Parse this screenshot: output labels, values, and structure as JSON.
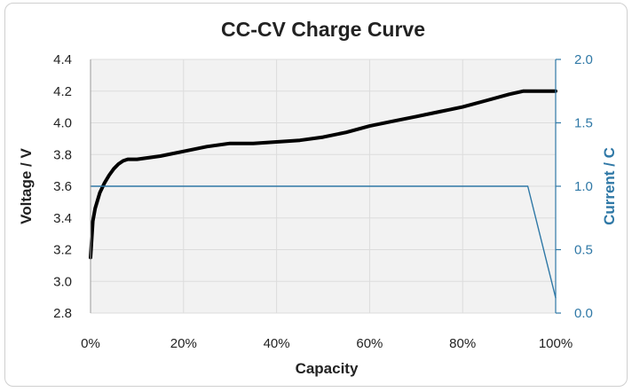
{
  "chart_data": {
    "type": "line",
    "title": "CC-CV Charge Curve",
    "xlabel": "Capacity",
    "ylabel": "Voltage / V",
    "y2label": "Current / C",
    "xlim": [
      0,
      100
    ],
    "ylim": [
      2.8,
      4.4
    ],
    "y2lim": [
      0.0,
      2.0
    ],
    "x_ticks": [
      0,
      20,
      40,
      60,
      80,
      100
    ],
    "x_tick_labels": [
      "0%",
      "20%",
      "40%",
      "60%",
      "80%",
      "100%"
    ],
    "y_ticks": [
      2.8,
      3.0,
      3.2,
      3.4,
      3.6,
      3.8,
      4.0,
      4.2,
      4.4
    ],
    "y_tick_labels": [
      "2.8",
      "3.0",
      "3.2",
      "3.4",
      "3.6",
      "3.8",
      "4.0",
      "4.2",
      "4.4"
    ],
    "y2_ticks": [
      0.0,
      0.5,
      1.0,
      1.5,
      2.0
    ],
    "y2_tick_labels": [
      "0.0",
      "0.5",
      "1.0",
      "1.5",
      "2.0"
    ],
    "grid": true,
    "series": [
      {
        "name": "Voltage",
        "axis": "left",
        "color": "#000000",
        "x": [
          0,
          0.5,
          1,
          2,
          3,
          4,
          5,
          6,
          7,
          8,
          10,
          15,
          20,
          25,
          30,
          35,
          40,
          45,
          50,
          55,
          60,
          65,
          70,
          75,
          80,
          85,
          90,
          93,
          95,
          100
        ],
        "y": [
          3.15,
          3.38,
          3.46,
          3.56,
          3.62,
          3.67,
          3.71,
          3.74,
          3.76,
          3.77,
          3.77,
          3.79,
          3.82,
          3.85,
          3.87,
          3.87,
          3.88,
          3.89,
          3.91,
          3.94,
          3.98,
          4.01,
          4.04,
          4.07,
          4.1,
          4.14,
          4.18,
          4.2,
          4.2,
          4.2
        ]
      },
      {
        "name": "Current",
        "axis": "right",
        "color": "#2f78a6",
        "x": [
          0,
          94,
          100
        ],
        "y": [
          1.0,
          1.0,
          0.12
        ]
      }
    ]
  }
}
